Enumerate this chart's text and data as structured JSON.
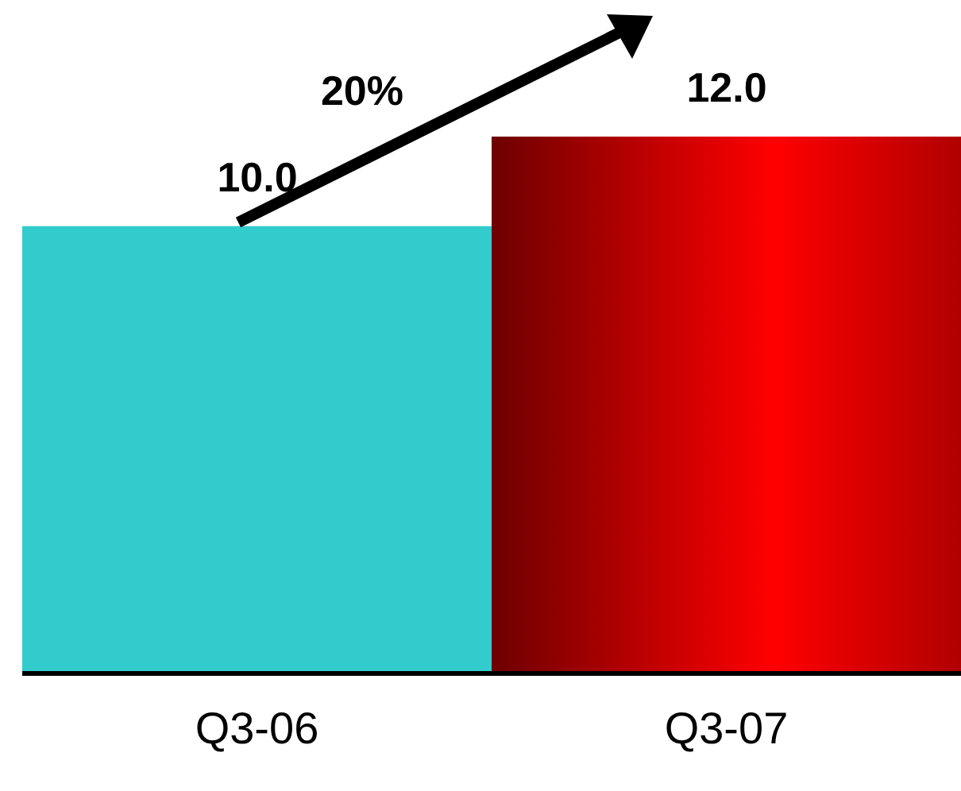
{
  "chart_data": {
    "type": "bar",
    "categories": [
      "Q3-06",
      "Q3-07"
    ],
    "values": [
      10.0,
      12.0
    ],
    "colors": [
      "#33cccc",
      "#ff0000"
    ],
    "value_labels": [
      "10.0",
      "12.0"
    ],
    "tick_labels": "x",
    "annotations": [
      "20%"
    ]
  }
}
